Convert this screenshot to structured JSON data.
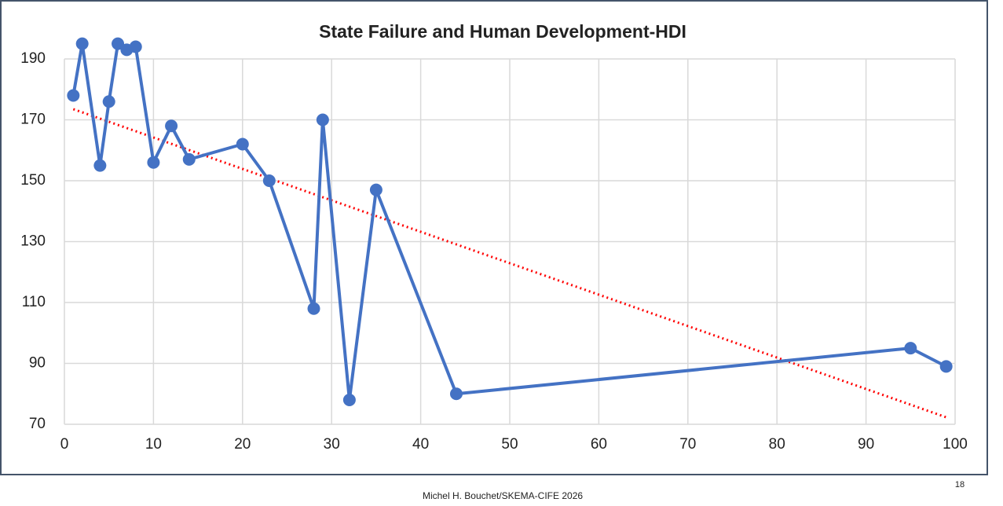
{
  "chart_data": {
    "type": "line",
    "title": "State Failure and Human Development-HDI",
    "x": [
      1,
      2,
      4,
      5,
      6,
      7,
      8,
      10,
      12,
      14,
      20,
      23,
      28,
      29,
      32,
      35,
      44,
      95,
      99
    ],
    "values": [
      178,
      195,
      155,
      176,
      195,
      193,
      194,
      156,
      168,
      157,
      162,
      150,
      108,
      170,
      78,
      147,
      80,
      95,
      89
    ],
    "color": "#4472c4",
    "trendline": {
      "x": [
        1,
        99
      ],
      "values": [
        173.5,
        72.3
      ],
      "color": "#ff0000"
    },
    "xlim": [
      0,
      100
    ],
    "xticks": [
      0,
      10,
      20,
      30,
      40,
      50,
      60,
      70,
      80,
      90,
      100
    ],
    "ylim": [
      70,
      190
    ],
    "yticks": [
      70,
      90,
      110,
      130,
      150,
      170,
      190
    ],
    "grid": true
  },
  "footer": {
    "credit": "Michel H. Bouchet/SKEMA-CIFE 2026",
    "page": "18"
  }
}
